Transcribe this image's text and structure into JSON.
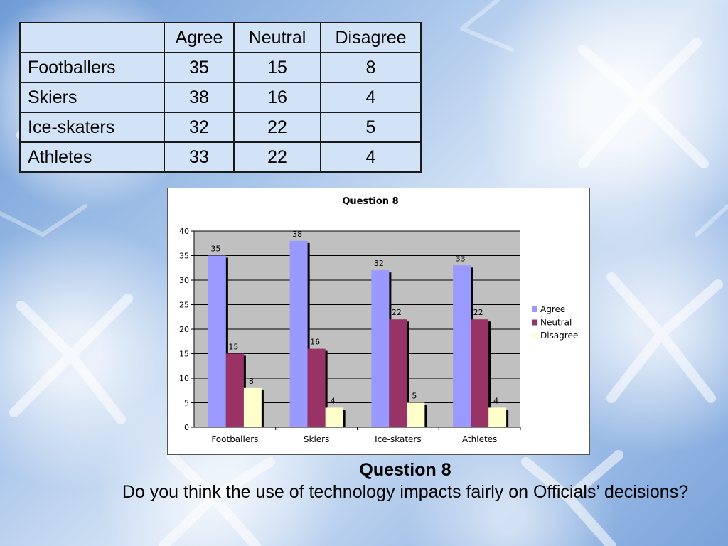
{
  "table": {
    "headers": [
      "",
      "Agree",
      "Neutral",
      "Disagree"
    ],
    "rows": [
      {
        "label": "Footballers",
        "values": [
          "35",
          "15",
          "8"
        ]
      },
      {
        "label": "Skiers",
        "values": [
          "38",
          "16",
          "4"
        ]
      },
      {
        "label": "Ice-skaters",
        "values": [
          "32",
          "22",
          "5"
        ]
      },
      {
        "label": "Athletes",
        "values": [
          "33",
          "22",
          "4"
        ]
      }
    ]
  },
  "chart_data": {
    "type": "bar",
    "title": "Question 8",
    "categories": [
      "Footballers",
      "Skiers",
      "Ice-skaters",
      "Athletes"
    ],
    "series": [
      {
        "name": "Agree",
        "values": [
          35,
          38,
          32,
          33
        ],
        "color": "#9999ff"
      },
      {
        "name": "Neutral",
        "values": [
          15,
          16,
          22,
          22
        ],
        "color": "#993366"
      },
      {
        "name": "Disagree",
        "values": [
          8,
          4,
          5,
          4
        ],
        "color": "#ffffcc"
      }
    ],
    "ylim": [
      0,
      40
    ],
    "yticks": [
      0,
      5,
      10,
      15,
      20,
      25,
      30,
      35,
      40
    ],
    "xlabel": "",
    "ylabel": "",
    "grid": true,
    "plot_background": "#c0c0c0",
    "legend_position": "right",
    "data_labels": true
  },
  "caption": {
    "title": "Question 8",
    "text": "Do you think the use of technology impacts fairly on Officials’ decisions?"
  }
}
